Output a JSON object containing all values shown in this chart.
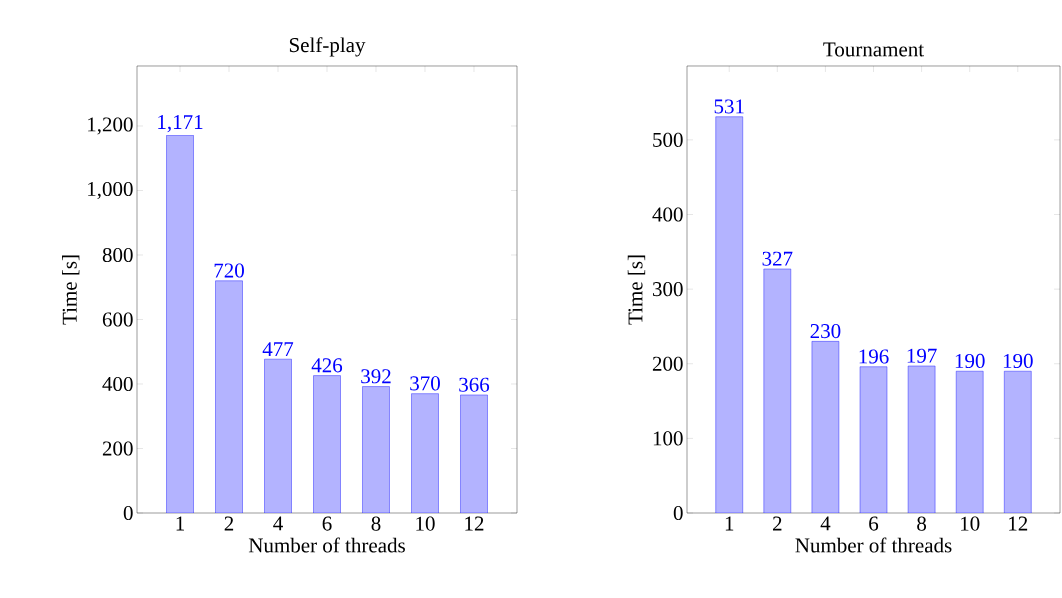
{
  "chart_data": [
    {
      "type": "bar",
      "title": "Self-play",
      "xlabel": "Number of threads",
      "ylabel": "Time [s]",
      "categories": [
        "1",
        "2",
        "4",
        "6",
        "8",
        "10",
        "12"
      ],
      "values": [
        1171,
        720,
        477,
        426,
        392,
        370,
        366
      ],
      "value_labels": [
        "1,171",
        "720",
        "477",
        "426",
        "392",
        "370",
        "366"
      ],
      "color": "#b3b3ff",
      "ylim": [
        0,
        1386
      ],
      "yticks": [
        0,
        200,
        400,
        600,
        800,
        {
          "value": 1000,
          "label": "1,000"
        },
        {
          "value": 1200,
          "label": "1,200"
        }
      ]
    },
    {
      "type": "bar",
      "title": "Tournament",
      "xlabel": "Number of threads",
      "ylabel": "Time [s]",
      "categories": [
        "1",
        "2",
        "4",
        "6",
        "8",
        "10",
        "12"
      ],
      "values": [
        531,
        327,
        230,
        196,
        197,
        190,
        190
      ],
      "value_labels": [
        "531",
        "327",
        "230",
        "196",
        "197",
        "190",
        "190"
      ],
      "color": "#b3b3ff",
      "ylim": [
        0,
        599
      ],
      "yticks": [
        0,
        100,
        200,
        300,
        400,
        500
      ]
    }
  ]
}
